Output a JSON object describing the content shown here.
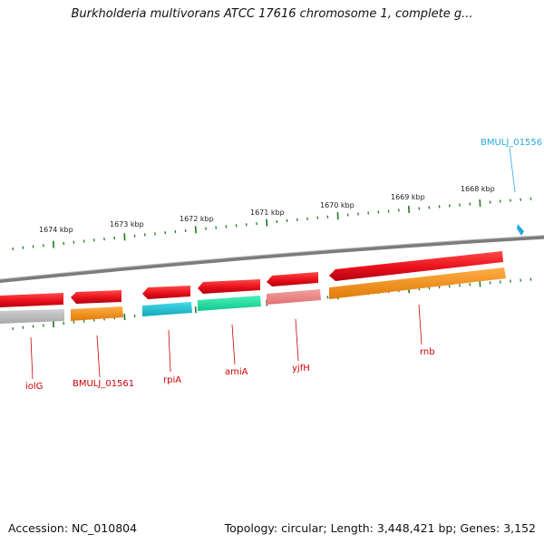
{
  "title": "Burkholderia multivorans ATCC 17616 chromosome 1, complete g...",
  "footer": {
    "accession": "Accession: NC_010804",
    "summary": "Topology: circular; Length: 3,448,421 bp; Genes: 3,152"
  },
  "ruler": {
    "ticks": [
      "1674 kbp",
      "1673 kbp",
      "1672 kbp",
      "1671 kbp",
      "1670 kbp",
      "1669 kbp",
      "1668 kbp"
    ]
  },
  "genes": [
    "iolG",
    "BMULJ_01561",
    "rpiA",
    "amiA",
    "yjfH",
    "rnb",
    "BMULJ_01556"
  ],
  "colors": {
    "cds": "#e8101a",
    "cds_light": "#ee8888",
    "orange": "#f28c17",
    "cyan": "#20c0d0",
    "green": "#18e0a0",
    "gray": "#b8b8b8",
    "tick": "#1e7a1e",
    "label_red": "#cc0000",
    "label_blue": "#29a9e0",
    "backbone": "#8a8a8a"
  }
}
